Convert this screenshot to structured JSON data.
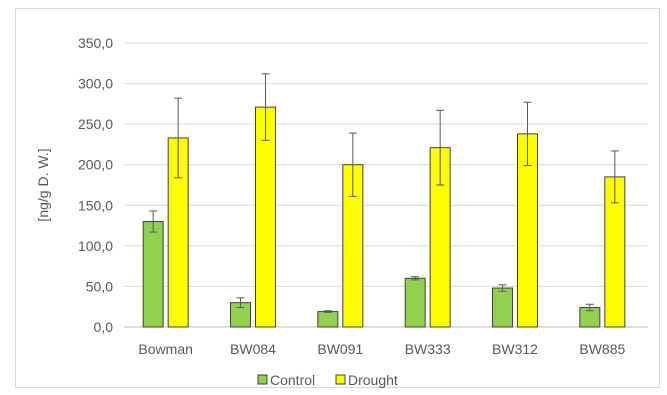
{
  "chart_data": {
    "type": "bar",
    "title": "",
    "xlabel": "",
    "ylabel": "[ng/g D. W.]",
    "ylim": [
      0,
      350
    ],
    "yticks": [
      "0,0",
      "50,0",
      "100,0",
      "150,0",
      "200,0",
      "250,0",
      "300,0",
      "350,0"
    ],
    "ytick_values": [
      0,
      50,
      100,
      150,
      200,
      250,
      300,
      350
    ],
    "categories": [
      "Bowman",
      "BW084",
      "BW091",
      "BW333",
      "BW312",
      "BW885"
    ],
    "series": [
      {
        "name": "Control",
        "color": "#92d050",
        "values": [
          130,
          30,
          19,
          60,
          48,
          24
        ],
        "errors": [
          13,
          6,
          1,
          2,
          4,
          4
        ]
      },
      {
        "name": "Drought",
        "color": "#ffff00",
        "values": [
          233,
          271,
          200,
          221,
          238,
          185
        ],
        "errors": [
          49,
          41,
          39,
          46,
          39,
          32
        ]
      }
    ],
    "grid": true,
    "legend_position": "bottom"
  }
}
